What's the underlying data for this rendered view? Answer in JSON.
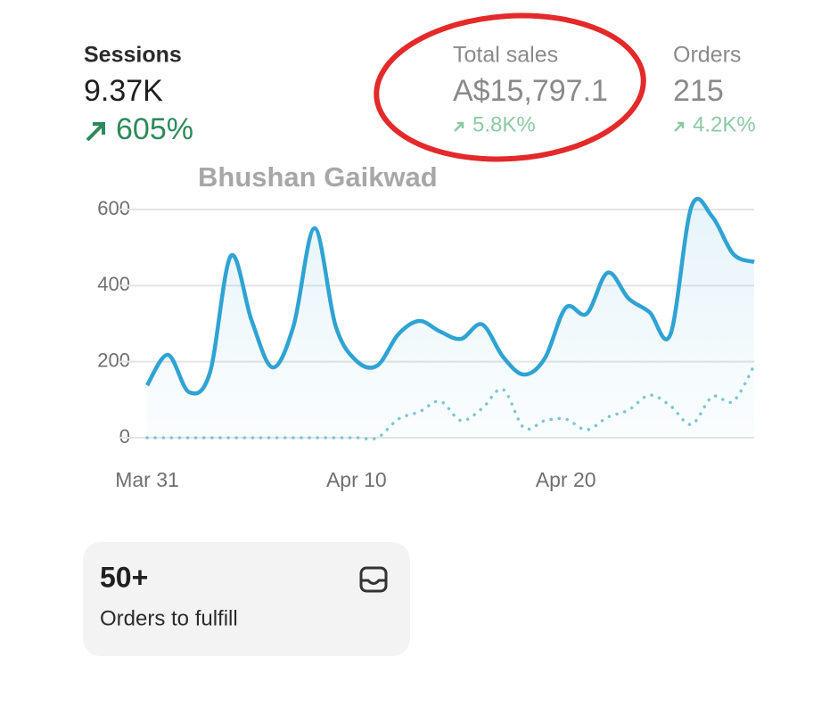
{
  "metrics": [
    {
      "label": "Sessions",
      "value": "9.37K",
      "change": "605%"
    },
    {
      "label": "Total sales",
      "value": "A$15,797.1",
      "change": "5.8K%"
    },
    {
      "label": "Orders",
      "value": "215",
      "change": "4.2K%"
    }
  ],
  "watermark": "Bhushan Gaikwad",
  "chart_data": {
    "type": "line",
    "categories": [
      "Mar 31",
      null,
      null,
      null,
      null,
      null,
      null,
      null,
      null,
      null,
      "Apr 10",
      null,
      null,
      null,
      null,
      null,
      null,
      null,
      null,
      null,
      "Apr 20",
      null,
      null,
      null,
      null,
      null,
      null,
      null,
      null,
      null
    ],
    "series": [
      {
        "color": "#2fa3d3",
        "style": "solid",
        "values": [
          138,
          218,
          120,
          171,
          478,
          307,
          185,
          295,
          551,
          295,
          202,
          190,
          272,
          307,
          279,
          260,
          298,
          213,
          166,
          209,
          342,
          326,
          434,
          366,
          330,
          272,
          607,
          581,
          483,
          462
        ]
      },
      {
        "color": "#7cc6d6",
        "style": "dotted",
        "values": [
          0,
          0,
          0,
          0,
          0,
          0,
          0,
          0,
          0,
          0,
          0,
          0,
          49,
          68,
          96,
          45,
          77,
          127,
          26,
          45,
          49,
          21,
          54,
          73,
          112,
          84,
          35,
          108,
          96,
          190
        ]
      }
    ],
    "ylim": [
      0,
      600
    ],
    "yticks": [
      0,
      200,
      400,
      600
    ],
    "grid": true
  },
  "card": {
    "value": "50+",
    "label": "Orders to fulfill"
  }
}
